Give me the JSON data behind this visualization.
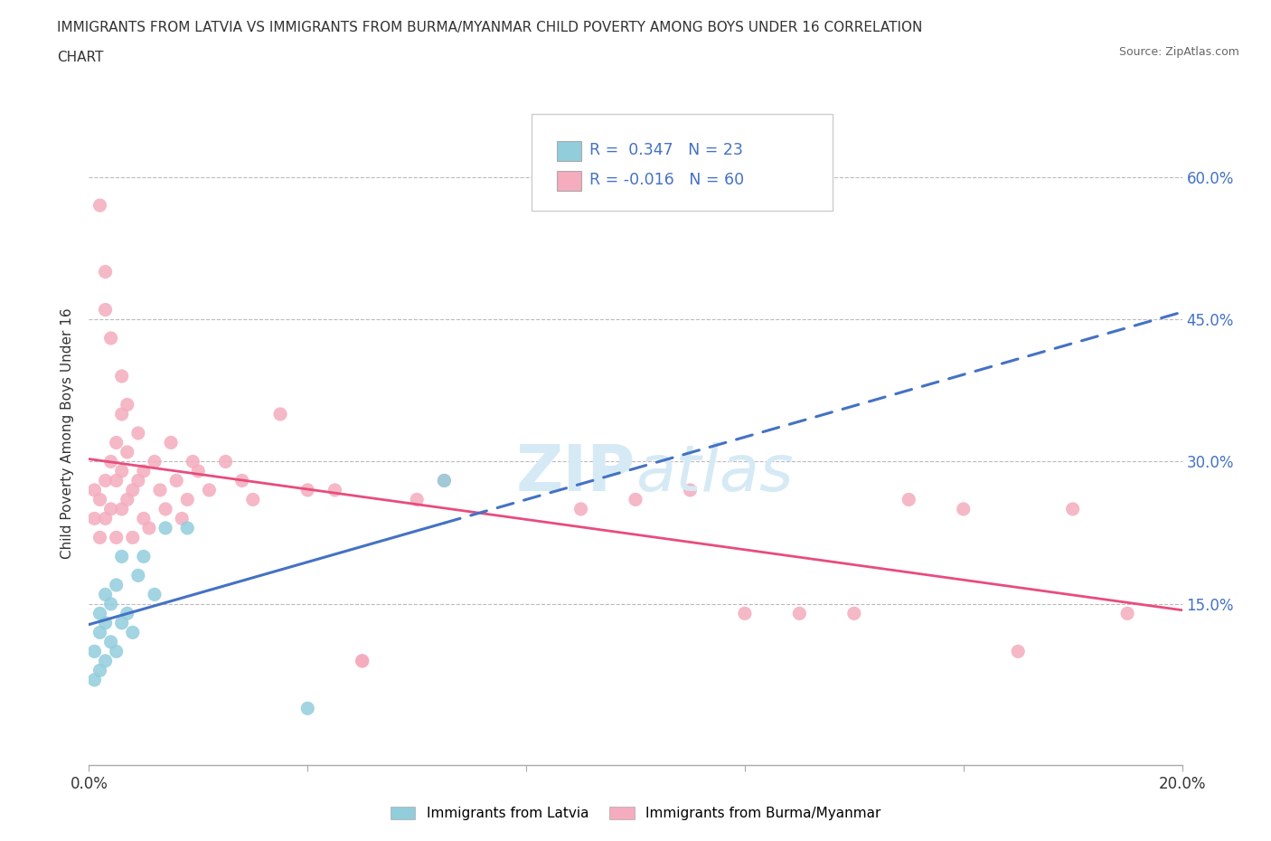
{
  "title_line1": "IMMIGRANTS FROM LATVIA VS IMMIGRANTS FROM BURMA/MYANMAR CHILD POVERTY AMONG BOYS UNDER 16 CORRELATION",
  "title_line2": "CHART",
  "source": "Source: ZipAtlas.com",
  "ylabel": "Child Poverty Among Boys Under 16",
  "xlim": [
    0.0,
    0.2
  ],
  "ylim": [
    -0.02,
    0.68
  ],
  "r_latvia": 0.347,
  "n_latvia": 23,
  "r_burma": -0.016,
  "n_burma": 60,
  "color_latvia": "#92CDDC",
  "color_burma": "#F4ACBE",
  "trendline_latvia_color": "#4472C4",
  "trendline_burma_color": "#E84C7D",
  "watermark": "ZIPatlas",
  "watermark_color": "#D6EAF5",
  "legend_label_latvia": "Immigrants from Latvia",
  "legend_label_burma": "Immigrants from Burma/Myanmar",
  "background_color": "#FFFFFF",
  "latvia_x": [
    0.001,
    0.001,
    0.002,
    0.002,
    0.002,
    0.003,
    0.003,
    0.003,
    0.004,
    0.004,
    0.005,
    0.005,
    0.006,
    0.006,
    0.007,
    0.008,
    0.009,
    0.01,
    0.012,
    0.014,
    0.018,
    0.04,
    0.065
  ],
  "latvia_y": [
    0.07,
    0.1,
    0.08,
    0.12,
    0.14,
    0.09,
    0.13,
    0.16,
    0.11,
    0.15,
    0.1,
    0.17,
    0.13,
    0.2,
    0.14,
    0.12,
    0.18,
    0.2,
    0.16,
    0.23,
    0.23,
    0.04,
    0.28
  ],
  "burma_x": [
    0.001,
    0.001,
    0.002,
    0.002,
    0.002,
    0.003,
    0.003,
    0.003,
    0.003,
    0.004,
    0.004,
    0.004,
    0.005,
    0.005,
    0.005,
    0.006,
    0.006,
    0.006,
    0.006,
    0.007,
    0.007,
    0.007,
    0.008,
    0.008,
    0.009,
    0.009,
    0.01,
    0.01,
    0.011,
    0.012,
    0.013,
    0.014,
    0.015,
    0.016,
    0.017,
    0.018,
    0.019,
    0.02,
    0.022,
    0.025,
    0.028,
    0.03,
    0.035,
    0.04,
    0.045,
    0.05,
    0.06,
    0.065,
    0.09,
    0.1,
    0.11,
    0.12,
    0.13,
    0.14,
    0.15,
    0.16,
    0.17,
    0.18,
    0.19,
    0.05
  ],
  "burma_y": [
    0.24,
    0.27,
    0.22,
    0.26,
    0.57,
    0.24,
    0.28,
    0.46,
    0.5,
    0.25,
    0.3,
    0.43,
    0.22,
    0.28,
    0.32,
    0.25,
    0.29,
    0.35,
    0.39,
    0.26,
    0.31,
    0.36,
    0.22,
    0.27,
    0.28,
    0.33,
    0.24,
    0.29,
    0.23,
    0.3,
    0.27,
    0.25,
    0.32,
    0.28,
    0.24,
    0.26,
    0.3,
    0.29,
    0.27,
    0.3,
    0.28,
    0.26,
    0.35,
    0.27,
    0.27,
    0.09,
    0.26,
    0.28,
    0.25,
    0.26,
    0.27,
    0.14,
    0.14,
    0.14,
    0.26,
    0.25,
    0.1,
    0.25,
    0.14,
    0.09
  ],
  "latvia_trendline_x": [
    0.0,
    0.065,
    0.2
  ],
  "latvia_trendline_y": [
    0.1,
    0.225,
    0.335
  ],
  "burma_trendline_x": [
    0.0,
    0.2
  ],
  "burma_trendline_y": [
    0.258,
    0.252
  ]
}
